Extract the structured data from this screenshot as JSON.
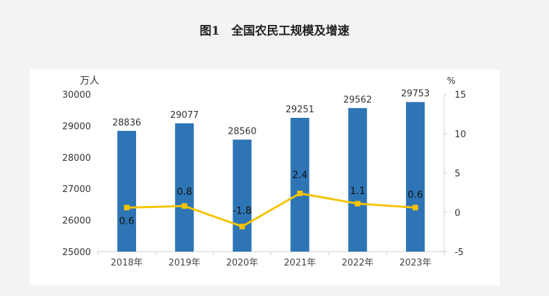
{
  "page": {
    "title": "图1　全国农民工规模及增速"
  },
  "chart_data": {
    "type": "bar+line",
    "title": "图1　全国农民工规模及增速",
    "categories": [
      "2018年",
      "2019年",
      "2020年",
      "2021年",
      "2022年",
      "2023年"
    ],
    "bar_series": {
      "unit": "万人",
      "values": [
        28836,
        29077,
        28560,
        29251,
        29562,
        29753
      ]
    },
    "line_series": {
      "unit": "%",
      "values": [
        0.6,
        0.8,
        -1.8,
        2.4,
        1.1,
        0.6
      ]
    },
    "y_left": {
      "label": "万人",
      "range": [
        25000,
        30000
      ],
      "ticks": [
        "25000",
        "26000",
        "27000",
        "28000",
        "29000",
        "30000"
      ]
    },
    "y_right": {
      "label": "%",
      "range": [
        -5,
        15
      ],
      "ticks": [
        "-5",
        "0",
        "5",
        "10",
        "15"
      ]
    },
    "grid": false,
    "colors": {
      "bar": "#2e75b6",
      "line": "#f5c400",
      "marker": "#f5c400"
    }
  }
}
